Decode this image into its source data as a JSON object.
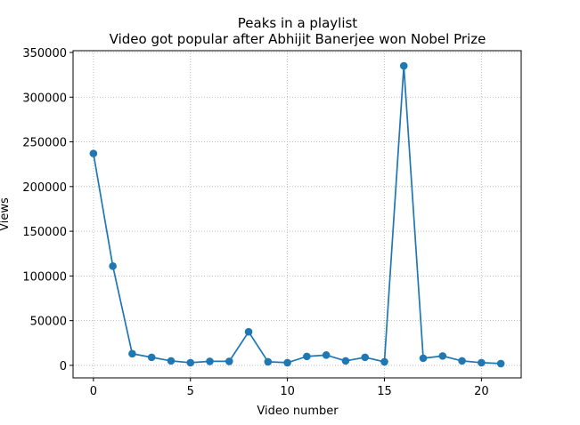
{
  "chart_data": {
    "type": "line",
    "title": "Peaks in a playlist",
    "subtitle": "Video got popular after Abhijit Banerjee won Nobel Prize",
    "xlabel": "Video number",
    "ylabel": "Views",
    "xlim": [
      -1.05,
      22.05
    ],
    "ylim": [
      -14000,
      352000
    ],
    "xticks": [
      0,
      5,
      10,
      15,
      20
    ],
    "yticks": [
      0,
      50000,
      100000,
      150000,
      200000,
      250000,
      300000,
      350000
    ],
    "grid": true,
    "series": [
      {
        "color": "#1f77b4",
        "marker": "circle",
        "x": [
          0,
          1,
          2,
          3,
          4,
          5,
          6,
          7,
          8,
          9,
          10,
          11,
          12,
          13,
          14,
          15,
          16,
          17,
          18,
          19,
          20,
          21
        ],
        "values": [
          237000,
          111000,
          13000,
          9000,
          5000,
          3000,
          4500,
          4500,
          37500,
          4000,
          3000,
          10000,
          11500,
          5000,
          9000,
          4000,
          335000,
          8000,
          10500,
          5000,
          3000,
          2000
        ]
      }
    ]
  }
}
